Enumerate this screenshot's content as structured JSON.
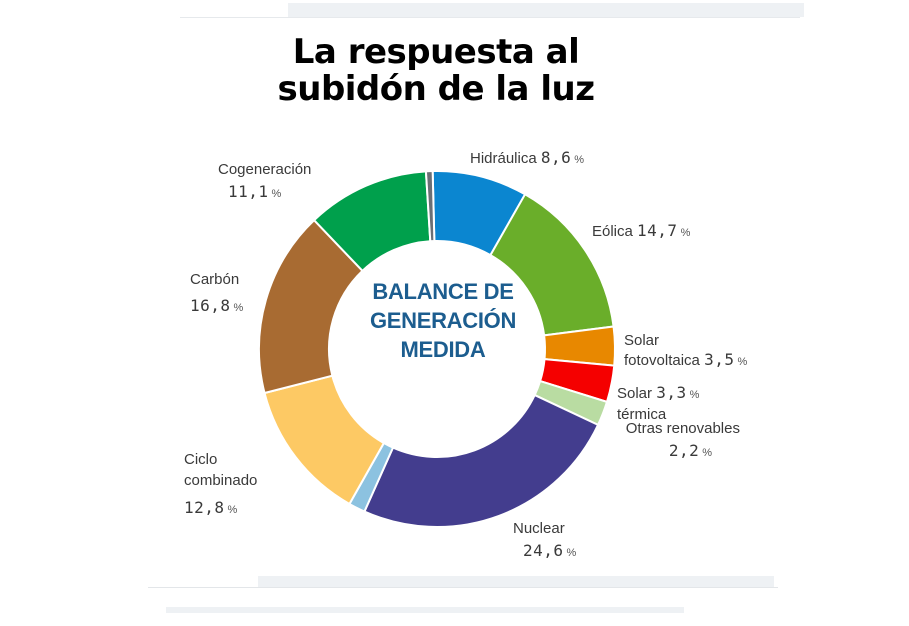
{
  "title": {
    "line1": "La respuesta al",
    "line2": "subidón de la luz"
  },
  "chart_data": {
    "type": "pie",
    "donut": true,
    "title": "La respuesta al subidón de la luz",
    "center_text": [
      "BALANCE DE",
      "GENERACIÓN",
      "MEDIDA"
    ],
    "unit": "%",
    "slices": [
      {
        "label": "Hidráulica",
        "value": 8.6,
        "text": "8,6",
        "color": "#0b86d0"
      },
      {
        "label": "Eólica",
        "value": 14.7,
        "text": "14,7",
        "color": "#6aae2a"
      },
      {
        "label": "Solar fotovoltaica",
        "value": 3.5,
        "text": "3,5",
        "color": "#e88800"
      },
      {
        "label": "Solar térmica",
        "value": 3.3,
        "text": "3,3",
        "color": "#f50000"
      },
      {
        "label": "Otras renovables",
        "value": 2.2,
        "text": "2,2",
        "color": "#b9dca2"
      },
      {
        "label": "Nuclear",
        "value": 24.6,
        "text": "24,6",
        "color": "#433d8e"
      },
      {
        "label": "",
        "value": 1.5,
        "text": "",
        "color": "#8cc2e0"
      },
      {
        "label": "Ciclo combinado",
        "value": 12.8,
        "text": "12,8",
        "color": "#fdc964"
      },
      {
        "label": "Carbón",
        "value": 16.8,
        "text": "16,8",
        "color": "#a86b32"
      },
      {
        "label": "Cogeneración",
        "value": 11.1,
        "text": "11,1",
        "color": "#00a04c"
      },
      {
        "label": "",
        "value": 0.6,
        "text": "",
        "color": "#6a6f75"
      }
    ]
  },
  "labels": {
    "hidraulica": {
      "name": "Hidráulica",
      "value": "8,6",
      "unit": "%"
    },
    "eolica": {
      "name": "Eólica",
      "value": "14,7",
      "unit": "%"
    },
    "solar_fv": {
      "name_line1": "Solar",
      "name_line2": "fotovoltaica",
      "value": "3,5",
      "unit": "%"
    },
    "solar_termica": {
      "name_line1": "Solar",
      "name_line2": "térmica",
      "value": "3,3",
      "unit": "%"
    },
    "otras": {
      "name": "Otras renovables",
      "value": "2,2",
      "unit": "%"
    },
    "nuclear": {
      "name": "Nuclear",
      "value": "24,6",
      "unit": "%"
    },
    "ciclo": {
      "name_line1": "Ciclo",
      "name_line2": "combinado",
      "value": "12,8",
      "unit": "%"
    },
    "carbon": {
      "name": "Carbón",
      "value": "16,8",
      "unit": "%"
    },
    "cogeneracion": {
      "name": "Cogeneración",
      "value": "11,1",
      "unit": "%"
    }
  }
}
